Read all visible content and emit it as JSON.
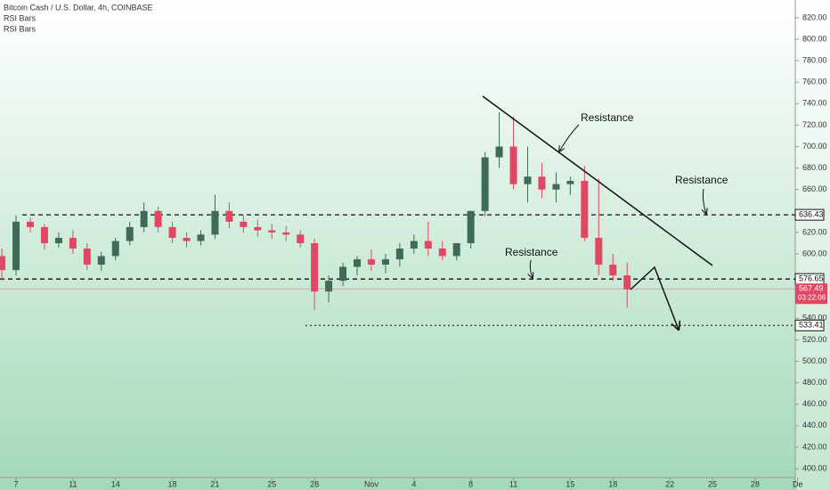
{
  "chart_data": {
    "type": "candlestick",
    "title": "Bitcoin Cash / U.S. Dollar, 4h, COINBASE",
    "indicators": [
      "RSI Bars",
      "RSI Bars"
    ],
    "x": [
      -1,
      0,
      1,
      2,
      3,
      4,
      5,
      6,
      7,
      8,
      9,
      10,
      11,
      12,
      13,
      14,
      15,
      16,
      17,
      18,
      19,
      20,
      21,
      22,
      23,
      24,
      25,
      26,
      27,
      28,
      29,
      30,
      31,
      32,
      33,
      34,
      35,
      36,
      37,
      38,
      39,
      40,
      41,
      42,
      43
    ],
    "open": [
      598,
      585,
      630,
      625,
      610,
      615,
      605,
      590,
      598,
      612,
      625,
      640,
      625,
      615,
      612,
      618,
      640,
      630,
      625,
      622,
      620,
      618,
      610,
      565,
      575,
      588,
      595,
      590,
      595,
      605,
      612,
      605,
      598,
      610,
      640,
      690,
      700,
      665,
      672,
      660,
      665,
      668,
      615,
      590,
      580
    ],
    "high": [
      605,
      636,
      634,
      628,
      620,
      622,
      610,
      602,
      615,
      630,
      648,
      644,
      630,
      620,
      622,
      655,
      648,
      636,
      632,
      628,
      626,
      622,
      614,
      580,
      592,
      598,
      604,
      600,
      610,
      618,
      630,
      612,
      608,
      640,
      695,
      732,
      728,
      700,
      685,
      676,
      672,
      682,
      670,
      600,
      592
    ],
    "low": [
      575,
      580,
      620,
      604,
      606,
      600,
      585,
      584,
      594,
      608,
      620,
      620,
      610,
      606,
      608,
      614,
      624,
      620,
      616,
      614,
      612,
      606,
      548,
      555,
      570,
      580,
      584,
      582,
      588,
      600,
      598,
      594,
      594,
      605,
      635,
      680,
      660,
      648,
      652,
      648,
      655,
      612,
      580,
      575,
      550
    ],
    "close": [
      585,
      630,
      625,
      610,
      615,
      605,
      590,
      598,
      612,
      625,
      640,
      625,
      615,
      612,
      618,
      640,
      630,
      625,
      622,
      620,
      618,
      610,
      565,
      575,
      588,
      595,
      590,
      595,
      605,
      612,
      605,
      598,
      610,
      640,
      690,
      700,
      665,
      672,
      660,
      665,
      668,
      615,
      590,
      580,
      567
    ],
    "up_color": "#3d6b58",
    "down_color": "#e04763",
    "xlim": [
      -1.13,
      54.83
    ],
    "xticks": [
      {
        "value": 0,
        "label": "7"
      },
      {
        "value": 4,
        "label": "11"
      },
      {
        "value": 7,
        "label": "14"
      },
      {
        "value": 11,
        "label": "18"
      },
      {
        "value": 14,
        "label": "21"
      },
      {
        "value": 18,
        "label": "25"
      },
      {
        "value": 21,
        "label": "28"
      },
      {
        "value": 25,
        "label": "Nov"
      },
      {
        "value": 28,
        "label": "4"
      },
      {
        "value": 32,
        "label": "8"
      },
      {
        "value": 35,
        "label": "11"
      },
      {
        "value": 39,
        "label": "15"
      },
      {
        "value": 42,
        "label": "18"
      },
      {
        "value": 46,
        "label": "22"
      },
      {
        "value": 49,
        "label": "25"
      },
      {
        "value": 52,
        "label": "28"
      },
      {
        "value": 55,
        "label": "De"
      }
    ],
    "ylim": [
      391.75,
      836.5
    ],
    "yticks": [
      {
        "value": 820,
        "label": "820.00"
      },
      {
        "value": 800,
        "label": "800.00"
      },
      {
        "value": 780,
        "label": "780.00"
      },
      {
        "value": 760,
        "label": "760.00"
      },
      {
        "value": 740,
        "label": "740.00"
      },
      {
        "value": 720,
        "label": "720.00"
      },
      {
        "value": 700,
        "label": "700.00"
      },
      {
        "value": 680,
        "label": "680.00"
      },
      {
        "value": 660,
        "label": "660.00"
      },
      {
        "value": 620,
        "label": "620.00"
      },
      {
        "value": 600,
        "label": "600.00"
      },
      {
        "value": 540,
        "label": "540.00"
      },
      {
        "value": 520,
        "label": "520.00"
      },
      {
        "value": 500,
        "label": "500.00"
      },
      {
        "value": 480,
        "label": "480.00"
      },
      {
        "value": 460,
        "label": "460.00"
      },
      {
        "value": 440,
        "label": "440.00"
      },
      {
        "value": 420,
        "label": "420.00"
      },
      {
        "value": 400,
        "label": "400.00"
      }
    ],
    "levels": [
      636.43,
      576.65,
      533.41
    ],
    "last_price": 567.49,
    "countdown": "03:22:06",
    "annotations": [
      "Resistance",
      "Resistance",
      "Resistance"
    ]
  }
}
